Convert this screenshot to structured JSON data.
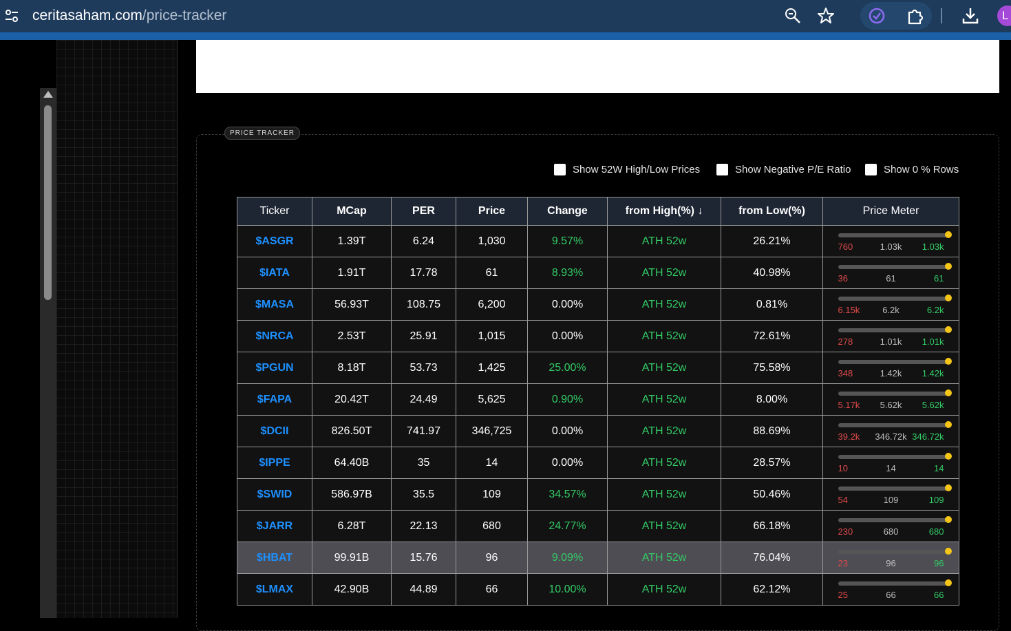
{
  "browser": {
    "url_domain": "ceritasaham.com",
    "url_path": "/price-tracker",
    "avatar_letter": "L"
  },
  "tracker": {
    "section_label": "PRICE TRACKER",
    "filters": [
      {
        "label": "Show 52W High/Low Prices",
        "checked": false
      },
      {
        "label": "Show Negative P/E Ratio",
        "checked": false
      },
      {
        "label": "Show 0 % Rows",
        "checked": false
      }
    ],
    "columns": [
      "Ticker",
      "MCap",
      "PER",
      "Price",
      "Change",
      "from High(%) ↓",
      "from Low(%)",
      "Price Meter"
    ],
    "rows": [
      {
        "ticker": "$ASGR",
        "mcap": "1.39T",
        "per": "6.24",
        "price": "1,030",
        "change": "9.57%",
        "from_high": "ATH 52w",
        "from_low": "26.21%",
        "meter": {
          "low": "760",
          "current": "1.03k",
          "high": "1.03k",
          "position": 1.0
        }
      },
      {
        "ticker": "$IATA",
        "mcap": "1.91T",
        "per": "17.78",
        "price": "61",
        "change": "8.93%",
        "from_high": "ATH 52w",
        "from_low": "40.98%",
        "meter": {
          "low": "36",
          "current": "61",
          "high": "61",
          "position": 1.0
        }
      },
      {
        "ticker": "$MASA",
        "mcap": "56.93T",
        "per": "108.75",
        "price": "6,200",
        "change": "0.00%",
        "from_high": "ATH 52w",
        "from_low": "0.81%",
        "meter": {
          "low": "6.15k",
          "current": "6.2k",
          "high": "6.2k",
          "position": 1.0
        }
      },
      {
        "ticker": "$NRCA",
        "mcap": "2.53T",
        "per": "25.91",
        "price": "1,015",
        "change": "0.00%",
        "from_high": "ATH 52w",
        "from_low": "72.61%",
        "meter": {
          "low": "278",
          "current": "1.01k",
          "high": "1.01k",
          "position": 1.0
        }
      },
      {
        "ticker": "$PGUN",
        "mcap": "8.18T",
        "per": "53.73",
        "price": "1,425",
        "change": "25.00%",
        "from_high": "ATH 52w",
        "from_low": "75.58%",
        "meter": {
          "low": "348",
          "current": "1.42k",
          "high": "1.42k",
          "position": 1.0
        }
      },
      {
        "ticker": "$FAPA",
        "mcap": "20.42T",
        "per": "24.49",
        "price": "5,625",
        "change": "0.90%",
        "from_high": "ATH 52w",
        "from_low": "8.00%",
        "meter": {
          "low": "5.17k",
          "current": "5.62k",
          "high": "5.62k",
          "position": 1.0
        }
      },
      {
        "ticker": "$DCII",
        "mcap": "826.50T",
        "per": "741.97",
        "price": "346,725",
        "change": "0.00%",
        "from_high": "ATH 52w",
        "from_low": "88.69%",
        "meter": {
          "low": "39.2k",
          "current": "346.72k",
          "high": "346.72k",
          "position": 1.0
        }
      },
      {
        "ticker": "$IPPE",
        "mcap": "64.40B",
        "per": "35",
        "price": "14",
        "change": "0.00%",
        "from_high": "ATH 52w",
        "from_low": "28.57%",
        "meter": {
          "low": "10",
          "current": "14",
          "high": "14",
          "position": 1.0
        }
      },
      {
        "ticker": "$SWID",
        "mcap": "586.97B",
        "per": "35.5",
        "price": "109",
        "change": "34.57%",
        "from_high": "ATH 52w",
        "from_low": "50.46%",
        "meter": {
          "low": "54",
          "current": "109",
          "high": "109",
          "position": 1.0
        }
      },
      {
        "ticker": "$JARR",
        "mcap": "6.28T",
        "per": "22.13",
        "price": "680",
        "change": "24.77%",
        "from_high": "ATH 52w",
        "from_low": "66.18%",
        "meter": {
          "low": "230",
          "current": "680",
          "high": "680",
          "position": 1.0
        }
      },
      {
        "ticker": "$HBAT",
        "mcap": "99.91B",
        "per": "15.76",
        "price": "96",
        "change": "9.09%",
        "from_high": "ATH 52w",
        "from_low": "76.04%",
        "highlighted": true,
        "meter": {
          "low": "23",
          "current": "96",
          "high": "96",
          "position": 1.0
        }
      },
      {
        "ticker": "$LMAX",
        "mcap": "42.90B",
        "per": "44.89",
        "price": "66",
        "change": "10.00%",
        "from_high": "ATH 52w",
        "from_low": "62.12%",
        "meter": {
          "low": "25",
          "current": "66",
          "high": "66",
          "position": 1.0
        }
      }
    ]
  },
  "colors": {
    "ticker": "#1e90ff",
    "positive": "#33cc66",
    "low": "#e04a4a",
    "meter_dot": "#f5c518",
    "header_bg": "#1e2533"
  }
}
